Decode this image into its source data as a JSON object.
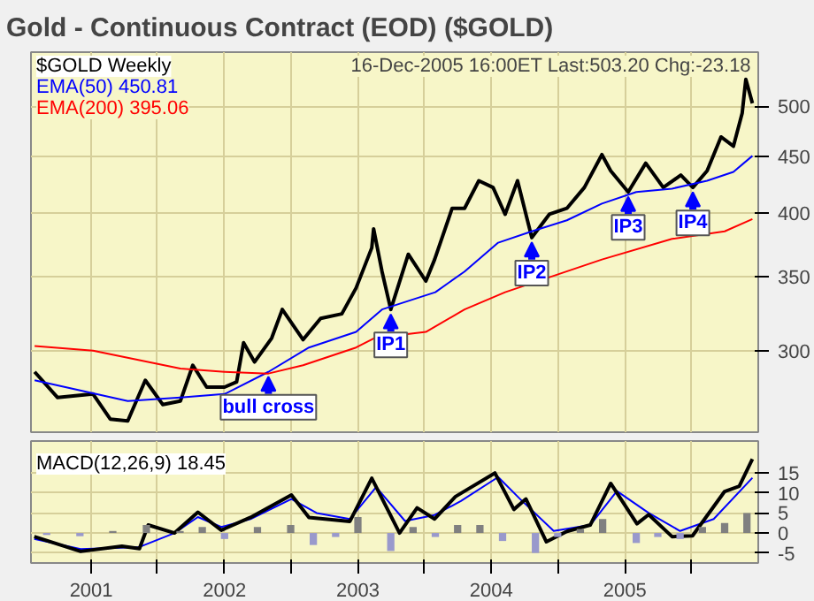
{
  "chart_data": [
    {
      "type": "line",
      "title": "Gold - Continuous Contract (EOD) ($GOLD)",
      "annotations": [
        "16-Dec-2005 16:00ET Last:503.20 Chg:-23.18",
        {
          "text": "bull cross",
          "x": "2002-05-01",
          "y": 287
        },
        {
          "text": "IP1",
          "x": "2003-04-01",
          "y": 327
        },
        {
          "text": "IP2",
          "x": "2004-04-21",
          "y": 380
        },
        {
          "text": "IP3",
          "x": "2005-01-10",
          "y": 418
        },
        {
          "text": "IP4",
          "x": "2005-07-06",
          "y": 422
        }
      ],
      "series": [
        {
          "name": "$GOLD Weekly",
          "color": "#000000",
          "x": [
            "2000-07-30",
            "2000-10-01",
            "2001-01-06",
            "2001-02-22",
            "2001-04-11",
            "2001-05-29",
            "2001-07-16",
            "2001-09-02",
            "2001-10-06",
            "2001-11-13",
            "2002-01-01",
            "2002-02-03",
            "2002-02-22",
            "2002-03-24",
            "2002-05-10",
            "2002-06-08",
            "2002-08-04",
            "2002-09-21",
            "2002-11-18",
            "2002-12-27",
            "2003-02-08",
            "2003-02-13",
            "2003-03-08",
            "2003-04-01",
            "2003-05-19",
            "2003-07-06",
            "2003-07-30",
            "2003-09-16",
            "2003-10-20",
            "2003-11-28",
            "2004-01-06",
            "2004-02-08",
            "2004-03-13",
            "2004-04-21",
            "2004-06-08",
            "2004-07-26",
            "2004-09-12",
            "2004-10-30",
            "2004-11-23",
            "2005-01-10",
            "2005-02-27",
            "2005-04-16",
            "2005-06-03",
            "2005-07-06",
            "2005-08-14",
            "2005-09-21",
            "2005-10-25",
            "2005-11-18",
            "2005-11-28",
            "2005-12-16"
          ],
          "values": [
            287,
            272,
            274,
            260,
            259,
            282,
            268,
            270,
            291,
            278,
            278,
            281,
            305,
            293,
            308,
            327,
            307,
            321,
            324,
            342,
            372,
            387,
            354,
            327,
            367,
            347,
            363,
            404,
            404,
            428,
            422,
            399,
            428,
            380,
            399,
            404,
            422,
            452,
            437,
            418,
            444,
            422,
            433,
            422,
            437,
            469,
            460,
            493,
            529,
            503.2
          ]
        },
        {
          "name": "EMA(50) 450.81",
          "color": "#0000ff",
          "x": [
            "2000-07-30",
            "2001-04-11",
            "2001-09-02",
            "2002-01-01",
            "2002-05-01",
            "2002-08-20",
            "2002-12-27",
            "2003-03-08",
            "2003-08-01",
            "2003-10-20",
            "2004-01-20",
            "2004-04-21",
            "2004-07-26",
            "2004-10-30",
            "2005-02-01",
            "2005-05-10",
            "2005-08-14",
            "2005-10-25",
            "2005-12-16"
          ],
          "values": [
            282,
            270,
            272,
            274,
            287,
            302,
            312,
            327,
            339,
            354,
            376,
            385,
            394,
            408,
            418,
            421,
            428,
            436,
            450.81
          ]
        },
        {
          "name": "EMA(200) 395.06",
          "color": "#ff0000",
          "x": [
            "2000-07-30",
            "2001-01-06",
            "2001-09-02",
            "2002-01-01",
            "2002-05-01",
            "2002-08-04",
            "2002-12-27",
            "2003-02-15",
            "2003-07-06",
            "2003-10-20",
            "2004-02-08",
            "2004-10-30",
            "2005-05-10",
            "2005-10-01",
            "2005-12-16"
          ],
          "values": [
            303,
            300,
            289,
            287,
            286,
            291,
            302,
            308,
            312,
            327,
            339,
            363,
            379,
            385,
            395.06
          ]
        }
      ],
      "xlim": [
        "2000-07-20",
        "2006-01-01"
      ],
      "xticks": [
        {
          "value": "2001-01-01",
          "label": null
        },
        {
          "value": "2001-07-01",
          "label": null
        },
        {
          "value": "2002-01-01",
          "label": null
        },
        {
          "value": "2002-07-01",
          "label": null
        },
        {
          "value": "2003-01-01",
          "label": null
        },
        {
          "value": "2003-07-01",
          "label": null
        },
        {
          "value": "2004-01-01",
          "label": null
        },
        {
          "value": "2004-07-01",
          "label": null
        },
        {
          "value": "2005-01-01",
          "label": null
        },
        {
          "value": "2005-07-01",
          "label": null
        }
      ],
      "ylim": [
        253,
        560
      ],
      "yticks": [
        300,
        350,
        400,
        450,
        500
      ],
      "log": true,
      "grid": true,
      "legend": "top left",
      "tick_labels": "y"
    },
    {
      "type": "line",
      "series": [
        {
          "type": "bar",
          "colors": [
            "#9999cc",
            "#9999cc",
            "#808080",
            "#808080",
            "#808080",
            "#808080",
            "#9999cc",
            "#808080",
            "#808080",
            "#9999cc",
            "#9999cc",
            "#808080",
            "#9999cc",
            "#808080",
            "#9999cc",
            "#808080",
            "#808080",
            "#9999cc",
            "#9999cc",
            "#9999cc",
            "#808080",
            "#808080",
            "#9999cc",
            "#9999cc",
            "#9999cc",
            "#808080",
            "#808080",
            "#808080"
          ],
          "x": [
            "2000-09-01",
            "2000-12-01",
            "2001-03-01",
            "2001-06-01",
            "2001-09-01",
            "2001-11-01",
            "2002-01-01",
            "2002-04-01",
            "2002-07-01",
            "2002-09-01",
            "2002-11-01",
            "2003-01-01",
            "2003-04-01",
            "2003-06-01",
            "2003-08-01",
            "2003-10-01",
            "2003-12-01",
            "2004-02-01",
            "2004-05-01",
            "2004-07-01",
            "2004-09-01",
            "2004-11-01",
            "2005-02-01",
            "2005-04-01",
            "2005-06-01",
            "2005-08-01",
            "2005-10-01",
            "2005-12-01"
          ],
          "values": [
            -0.5,
            -0.8,
            0.5,
            2.0,
            0.5,
            1.5,
            -1.5,
            1.5,
            2.0,
            -3.0,
            -1.0,
            4.0,
            -4.5,
            1.5,
            -1.0,
            2.0,
            2.0,
            -2.0,
            -5.0,
            -1.0,
            1.0,
            3.5,
            -2.5,
            -1.0,
            -1.5,
            1.5,
            2.5,
            5.0
          ]
        },
        {
          "color": "#0000ff",
          "x": [
            "2000-07-29",
            "2000-12-03",
            "2001-05-13",
            "2001-08-17",
            "2001-10-20",
            "2001-12-23",
            "2002-03-13",
            "2002-07-03",
            "2002-09-10",
            "2002-12-10",
            "2003-02-20",
            "2003-05-10",
            "2003-07-30",
            "2003-10-10",
            "2004-01-20",
            "2004-03-20",
            "2004-06-20",
            "2004-09-28",
            "2004-12-10",
            "2005-03-07",
            "2005-06-01",
            "2005-09-01",
            "2005-12-16"
          ],
          "values": [
            -1.5,
            -4.0,
            -3.5,
            0,
            4.0,
            1.5,
            3.5,
            8.5,
            5,
            3.5,
            11.5,
            3.0,
            4.5,
            8,
            14,
            8.5,
            0.5,
            2.0,
            10.5,
            5,
            0.5,
            3.5,
            13.8
          ]
        },
        {
          "name": "MACD(12,26,9) 18.45",
          "color": "#000000",
          "x": [
            "2000-07-29",
            "2000-12-03",
            "2001-03-26",
            "2001-05-13",
            "2001-06-06",
            "2001-08-17",
            "2001-10-20",
            "2001-12-23",
            "2002-03-13",
            "2002-07-03",
            "2002-08-20",
            "2002-12-10",
            "2003-02-08",
            "2003-04-25",
            "2003-06-12",
            "2003-07-30",
            "2003-09-25",
            "2004-01-11",
            "2004-03-03",
            "2004-04-05",
            "2004-05-31",
            "2004-07-26",
            "2004-09-28",
            "2004-11-23",
            "2005-02-03",
            "2005-03-07",
            "2005-05-10",
            "2005-07-05",
            "2005-10-01",
            "2005-11-10",
            "2005-12-16"
          ],
          "values": [
            -0.9,
            -4.6,
            -3.3,
            -3.9,
            2.0,
            0,
            5.2,
            0.7,
            3.9,
            9.5,
            3.9,
            2.9,
            13.7,
            0,
            6.3,
            3.5,
            9.1,
            15.0,
            5.9,
            8.5,
            -2.2,
            0.4,
            2.0,
            12.4,
            2.3,
            4.6,
            -0.9,
            -0.7,
            10.4,
            11.7,
            18.5
          ]
        }
      ],
      "xlim": [
        "2000-07-20",
        "2006-01-01"
      ],
      "xticks": [
        {
          "value": "2001-01-01",
          "label": "2001"
        },
        {
          "value": "2001-07-01",
          "label": null
        },
        {
          "value": "2002-01-01",
          "label": "2002"
        },
        {
          "value": "2002-07-01",
          "label": null
        },
        {
          "value": "2003-01-01",
          "label": "2003"
        },
        {
          "value": "2003-07-01",
          "label": null
        },
        {
          "value": "2004-01-01",
          "label": "2004"
        },
        {
          "value": "2004-07-01",
          "label": null
        },
        {
          "value": "2005-01-01",
          "label": "2005"
        },
        {
          "value": "2005-07-01",
          "label": null
        }
      ],
      "ylim": [
        -7.5,
        23
      ],
      "yticks": [
        -5,
        0,
        5,
        10,
        15
      ],
      "grid": true,
      "legend": "top left"
    }
  ]
}
